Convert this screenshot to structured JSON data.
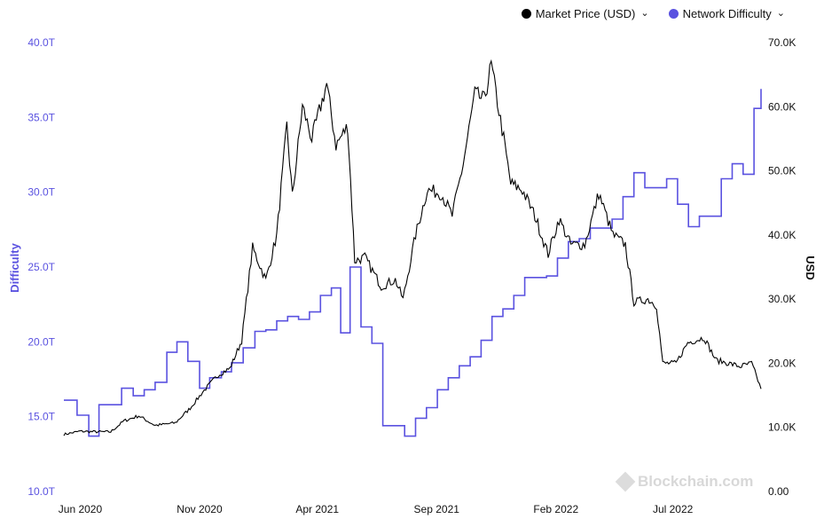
{
  "legend": {
    "price_label": "Market Price (USD)",
    "difficulty_label": "Network Difficulty",
    "chevron": "⌄"
  },
  "watermark": {
    "text": "Blockchain.com",
    "icon": "blockchain-logo-icon"
  },
  "colors": {
    "price": "#000000",
    "difficulty": "#5a52e0",
    "left_axis_text": "#5a52e0",
    "right_axis_text": "#111111",
    "grid": "#f0f0f0"
  },
  "chart_data": {
    "type": "line",
    "title": "",
    "x_tick_labels": [
      "Jun 2020",
      "Nov 2020",
      "Apr 2021",
      "Sep 2021",
      "Feb 2022",
      "Jul 2022"
    ],
    "x_ticks": [
      "2020-06",
      "2020-11",
      "2021-04",
      "2021-09",
      "2022-02",
      "2022-07"
    ],
    "xlim": [
      "2020-05-11",
      "2022-10-22"
    ],
    "y_left": {
      "label": "Difficulty",
      "ticks": [
        "10.0T",
        "15.0T",
        "20.0T",
        "25.0T",
        "30.0T",
        "35.0T",
        "40.0T"
      ],
      "ylim": [
        10,
        40
      ],
      "unit": "T"
    },
    "y_right": {
      "label": "USD",
      "ticks": [
        "0.00",
        "10.0K",
        "20.0K",
        "30.0K",
        "40.0K",
        "50.0K",
        "60.0K",
        "70.0K"
      ],
      "ylim": [
        0,
        70000
      ]
    },
    "grid": false,
    "legend_position": "top-right",
    "series": [
      {
        "name": "Market Price (USD)",
        "axis": "right",
        "x": [
          "2020-05-11",
          "2020-06-01",
          "2020-06-20",
          "2020-07-10",
          "2020-07-27",
          "2020-08-15",
          "2020-09-05",
          "2020-10-01",
          "2020-10-20",
          "2020-11-05",
          "2020-11-25",
          "2020-12-10",
          "2020-12-25",
          "2021-01-08",
          "2021-01-25",
          "2021-02-08",
          "2021-02-21",
          "2021-02-28",
          "2021-03-13",
          "2021-03-25",
          "2021-04-13",
          "2021-04-25",
          "2021-05-10",
          "2021-05-19",
          "2021-06-01",
          "2021-06-22",
          "2021-07-10",
          "2021-07-20",
          "2021-08-05",
          "2021-08-20",
          "2021-09-07",
          "2021-09-21",
          "2021-10-05",
          "2021-10-20",
          "2021-11-01",
          "2021-11-10",
          "2021-11-26",
          "2021-12-05",
          "2021-12-20",
          "2022-01-05",
          "2022-01-22",
          "2022-02-05",
          "2022-02-20",
          "2022-03-10",
          "2022-03-28",
          "2022-04-15",
          "2022-05-01",
          "2022-05-12",
          "2022-05-30",
          "2022-06-10",
          "2022-06-18",
          "2022-07-05",
          "2022-07-20",
          "2022-08-10",
          "2022-08-25",
          "2022-09-10",
          "2022-09-25",
          "2022-10-10",
          "2022-10-22"
        ],
        "values": [
          8900,
          9400,
          9300,
          9300,
          11000,
          11800,
          10300,
          10700,
          13000,
          15500,
          18200,
          19200,
          23500,
          38000,
          33000,
          40000,
          57000,
          46000,
          60000,
          55000,
          63500,
          54000,
          57000,
          36000,
          36500,
          32000,
          33000,
          30000,
          40000,
          47000,
          46500,
          43000,
          51000,
          62000,
          61000,
          66500,
          55000,
          48000,
          47000,
          43000,
          37000,
          42500,
          38500,
          38500,
          46500,
          40000,
          38500,
          29500,
          30000,
          29000,
          20000,
          20000,
          23200,
          24000,
          20500,
          20000,
          19500,
          20000,
          16000
        ]
      },
      {
        "name": "Network Difficulty",
        "axis": "left",
        "x": [
          "2020-05-11",
          "2020-05-28",
          "2020-06-12",
          "2020-06-25",
          "2020-07-10",
          "2020-07-24",
          "2020-08-08",
          "2020-08-22",
          "2020-09-05",
          "2020-09-20",
          "2020-10-03",
          "2020-10-17",
          "2020-11-01",
          "2020-11-14",
          "2020-11-29",
          "2020-12-12",
          "2020-12-27",
          "2021-01-11",
          "2021-01-25",
          "2021-02-08",
          "2021-02-22",
          "2021-03-08",
          "2021-03-22",
          "2021-04-05",
          "2021-04-19",
          "2021-05-01",
          "2021-05-13",
          "2021-05-27",
          "2021-06-10",
          "2021-06-24",
          "2021-07-08",
          "2021-07-22",
          "2021-08-05",
          "2021-08-19",
          "2021-09-02",
          "2021-09-16",
          "2021-09-30",
          "2021-10-14",
          "2021-10-28",
          "2021-11-11",
          "2021-11-25",
          "2021-12-09",
          "2021-12-23",
          "2022-01-06",
          "2022-01-20",
          "2022-02-03",
          "2022-02-17",
          "2022-03-03",
          "2022-03-17",
          "2022-03-31",
          "2022-04-14",
          "2022-04-28",
          "2022-05-12",
          "2022-05-26",
          "2022-06-09",
          "2022-06-23",
          "2022-07-07",
          "2022-07-21",
          "2022-08-04",
          "2022-08-18",
          "2022-09-01",
          "2022-09-15",
          "2022-09-29",
          "2022-10-13",
          "2022-10-22"
        ],
        "values": [
          16.1,
          15.1,
          13.7,
          15.8,
          15.8,
          16.9,
          16.4,
          16.8,
          17.3,
          19.3,
          20.0,
          18.7,
          16.9,
          17.6,
          18.0,
          18.6,
          19.6,
          20.7,
          20.8,
          21.4,
          21.7,
          21.5,
          22.0,
          23.1,
          23.6,
          20.6,
          25.0,
          21.0,
          19.9,
          14.4,
          14.4,
          13.7,
          14.9,
          15.6,
          16.8,
          17.6,
          18.4,
          19.0,
          20.1,
          21.7,
          22.2,
          23.1,
          24.3,
          24.3,
          24.4,
          25.6,
          26.7,
          26.9,
          27.6,
          27.6,
          28.2,
          29.7,
          31.3,
          30.3,
          30.3,
          30.9,
          29.2,
          27.7,
          28.4,
          28.4,
          30.9,
          31.9,
          31.2,
          35.6,
          36.9
        ]
      }
    ]
  }
}
